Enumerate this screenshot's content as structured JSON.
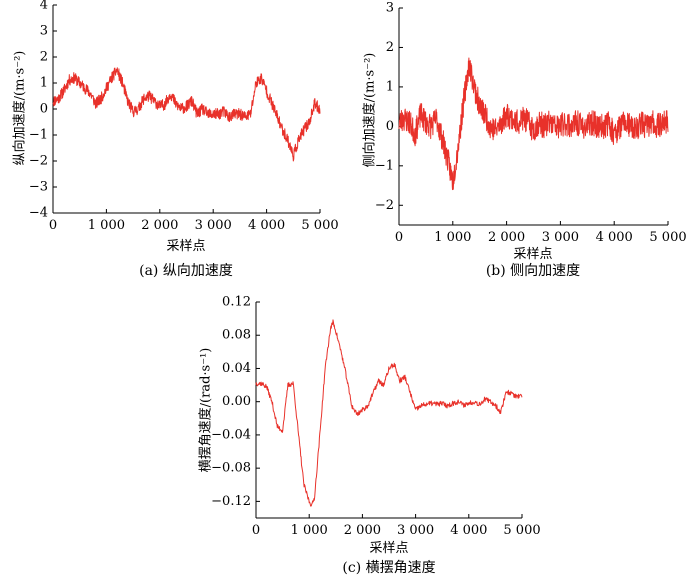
{
  "colors": {
    "series": "#e8312a",
    "axis": "#000000"
  },
  "chart_data": [
    {
      "type": "line",
      "caption": "(a) 纵向加速度",
      "xlabel": "采样点",
      "ylabel": "纵向加速度/(m·s⁻²)",
      "xlim": [
        0,
        5000
      ],
      "ylim": [
        -4,
        4
      ],
      "xticks": [
        0,
        1000,
        2000,
        3000,
        4000,
        5000
      ],
      "xtick_labels": [
        "0",
        "1 000",
        "2 000",
        "3 000",
        "4 000",
        "5 000"
      ],
      "yticks": [
        -4,
        -3,
        -2,
        -1,
        0,
        1,
        2,
        3,
        4
      ],
      "ytick_labels": [
        "−4",
        "−3",
        "−2",
        "−1",
        "0",
        "1",
        "2",
        "3",
        "4"
      ],
      "grid": false,
      "series": [
        {
          "noise": 0.22,
          "x": [
            0,
            100,
            200,
            300,
            400,
            500,
            600,
            700,
            800,
            900,
            1000,
            1100,
            1200,
            1300,
            1400,
            1500,
            1600,
            1700,
            1800,
            1900,
            2000,
            2100,
            2200,
            2300,
            2400,
            2500,
            2600,
            2700,
            2800,
            2900,
            3000,
            3100,
            3200,
            3300,
            3400,
            3500,
            3600,
            3700,
            3800,
            3900,
            4000,
            4100,
            4200,
            4300,
            4400,
            4500,
            4600,
            4700,
            4800,
            4900,
            5000
          ],
          "y": [
            0.3,
            0.4,
            0.7,
            1.1,
            1.2,
            1.0,
            0.8,
            0.6,
            0.2,
            0.4,
            0.8,
            1.2,
            1.5,
            1.0,
            0.3,
            -0.1,
            0.0,
            0.4,
            0.5,
            0.3,
            0.1,
            0.2,
            0.6,
            0.2,
            0.0,
            0.1,
            0.3,
            -0.2,
            0.0,
            -0.2,
            -0.2,
            -0.2,
            -0.1,
            -0.3,
            -0.2,
            -0.2,
            -0.3,
            -0.2,
            1.0,
            1.2,
            0.7,
            0.2,
            -0.3,
            -0.8,
            -1.2,
            -1.8,
            -1.2,
            -0.8,
            -0.5,
            0.2,
            0.0
          ]
        }
      ]
    },
    {
      "type": "line",
      "caption": "(b) 侧向加速度",
      "xlabel": "采样点",
      "ylabel": "侧向加速度/(m·s⁻²)",
      "xlim": [
        0,
        5000
      ],
      "ylim": [
        -2.5,
        3
      ],
      "xticks": [
        0,
        1000,
        2000,
        3000,
        4000,
        5000
      ],
      "xtick_labels": [
        "0",
        "1 000",
        "2 000",
        "3 000",
        "4 000",
        "5 000"
      ],
      "yticks": [
        -2,
        -1,
        0,
        1,
        2,
        3
      ],
      "ytick_labels": [
        "−2",
        "−1",
        "0",
        "1",
        "2",
        "3"
      ],
      "grid": false,
      "series": [
        {
          "noise": 0.32,
          "x": [
            0,
            100,
            200,
            300,
            400,
            500,
            600,
            700,
            800,
            900,
            1000,
            1100,
            1200,
            1300,
            1400,
            1500,
            1600,
            1700,
            1800,
            1900,
            2000,
            2100,
            2200,
            2300,
            2400,
            2500,
            2600,
            2700,
            2800,
            2900,
            3000,
            3100,
            3200,
            3300,
            3400,
            3500,
            3600,
            3700,
            3800,
            3900,
            4000,
            4100,
            4200,
            4300,
            4400,
            4500,
            4600,
            4700,
            4800,
            4900,
            5000
          ],
          "y": [
            0.1,
            0.2,
            0.1,
            -0.2,
            0.3,
            0.1,
            0.0,
            0.2,
            -0.3,
            -0.8,
            -1.4,
            -0.5,
            0.6,
            1.6,
            1.0,
            0.5,
            0.3,
            0.0,
            -0.1,
            0.1,
            0.3,
            0.2,
            0.1,
            0.2,
            0.1,
            -0.1,
            0.1,
            0.0,
            0.1,
            0.0,
            0.0,
            0.1,
            0.0,
            0.1,
            0.0,
            0.0,
            0.1,
            0.0,
            0.0,
            0.1,
            -0.2,
            0.0,
            0.1,
            0.0,
            -0.1,
            0.1,
            0.0,
            0.1,
            0.0,
            0.1,
            0.1
          ]
        }
      ]
    },
    {
      "type": "line",
      "caption": "(c) 横摆角速度",
      "xlabel": "采样点",
      "ylabel": "横摆角速度/(rad·s⁻¹)",
      "xlim": [
        0,
        5000
      ],
      "ylim": [
        -0.14,
        0.12
      ],
      "xticks": [
        0,
        1000,
        2000,
        3000,
        4000,
        5000
      ],
      "xtick_labels": [
        "0",
        "1 000",
        "2 000",
        "3 000",
        "4 000",
        "5 000"
      ],
      "yticks": [
        -0.12,
        -0.08,
        -0.04,
        0.0,
        0.04,
        0.08,
        0.12
      ],
      "ytick_labels": [
        "−0.12",
        "−0.08",
        "−0.04",
        "0.00",
        "0.04",
        "0.08",
        "0.12"
      ],
      "grid": false,
      "series": [
        {
          "noise": 0.003,
          "x": [
            0,
            100,
            200,
            300,
            400,
            500,
            600,
            700,
            800,
            900,
            1000,
            1050,
            1100,
            1200,
            1300,
            1400,
            1450,
            1500,
            1600,
            1700,
            1800,
            1900,
            2000,
            2100,
            2200,
            2300,
            2400,
            2500,
            2600,
            2700,
            2800,
            2900,
            3000,
            3100,
            3200,
            3300,
            3400,
            3500,
            3600,
            3700,
            3800,
            3900,
            4000,
            4100,
            4200,
            4300,
            4400,
            4500,
            4600,
            4700,
            4800,
            4900,
            5000
          ],
          "y": [
            0.022,
            0.022,
            0.018,
            0.0,
            -0.03,
            -0.035,
            0.02,
            0.022,
            -0.04,
            -0.1,
            -0.12,
            -0.125,
            -0.115,
            -0.04,
            0.04,
            0.088,
            0.096,
            0.085,
            0.06,
            0.03,
            -0.005,
            -0.015,
            -0.01,
            -0.005,
            0.01,
            0.025,
            0.02,
            0.04,
            0.045,
            0.025,
            0.03,
            0.01,
            -0.01,
            -0.005,
            -0.003,
            -0.002,
            -0.003,
            -0.002,
            -0.005,
            -0.002,
            0.0,
            -0.004,
            -0.002,
            0.0,
            -0.003,
            0.003,
            0.0,
            -0.004,
            -0.013,
            0.012,
            0.01,
            0.006,
            0.006
          ]
        }
      ]
    }
  ]
}
